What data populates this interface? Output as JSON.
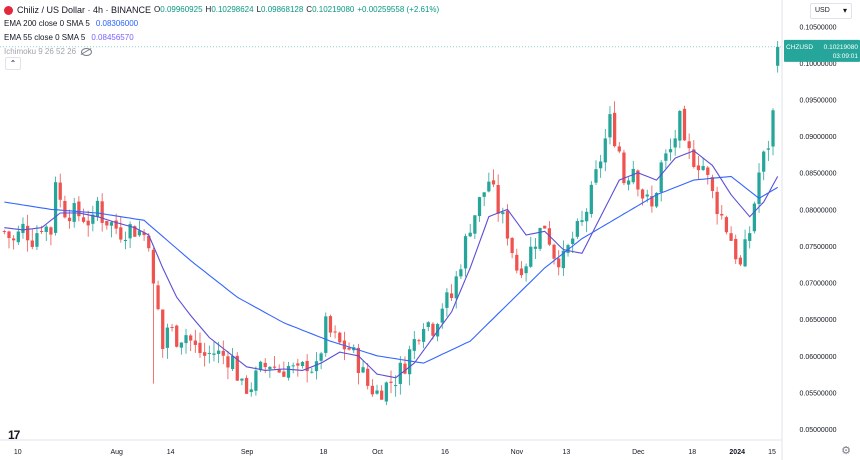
{
  "header": {
    "symbol_title": "Chiliz / US Dollar · 4h · BINANCE",
    "ohlc": [
      {
        "key": "O",
        "value": "0.09960925"
      },
      {
        "key": "H",
        "value": "0.10298624"
      },
      {
        "key": "L",
        "value": "0.09868128"
      },
      {
        "key": "C",
        "value": "0.10219080"
      },
      {
        "key": "",
        "value": "+0.00259558 (+2.61%)"
      }
    ],
    "indicators": [
      {
        "name": "EMA 200 close 0 SMA 5",
        "value": "0.08306000",
        "color": "#2962ff"
      },
      {
        "name": "EMA 55 close 0 SMA 5",
        "value": "0.08456570",
        "color": "#7b61ff"
      }
    ],
    "ichimoku_label": "Ichimoku 9 26 52 26",
    "currency": "USD"
  },
  "colors": {
    "up": "#26a69a",
    "down": "#ef5350",
    "ema200": "#3366ff",
    "ema55": "#5a4fd6",
    "price_line": "#26a69a",
    "logo": "#e2283a"
  },
  "price_label": {
    "symbol": "CHZUSD",
    "price": "0.10219080",
    "countdown": "03:09:01"
  },
  "chart_data": {
    "type": "candlestick",
    "symbol": "CHZUSD",
    "timeframe": "4h",
    "y_ticks": [
      "0.10500000",
      "0.10000000",
      "0.09500000",
      "0.09000000",
      "0.08500000",
      "0.08000000",
      "0.07500000",
      "0.07000000",
      "0.06500000",
      "0.06000000",
      "0.05500000",
      "0.05000000"
    ],
    "ylim": [
      0.0485,
      0.1075
    ],
    "x_ticks": [
      "10",
      "Aug",
      "14",
      "Sep",
      "18",
      "Oct",
      "16",
      "Nov",
      "13",
      "Dec",
      "18",
      "2024",
      "15"
    ],
    "close_path": [
      [
        0,
        0.077
      ],
      [
        2,
        0.0755
      ],
      [
        4,
        0.0775
      ],
      [
        6,
        0.076
      ],
      [
        8,
        0.078
      ],
      [
        10,
        0.077
      ],
      [
        11,
        0.0845
      ],
      [
        12,
        0.081
      ],
      [
        13,
        0.08
      ],
      [
        15,
        0.0795
      ],
      [
        17,
        0.079
      ],
      [
        19,
        0.078
      ],
      [
        20,
        0.081
      ],
      [
        21,
        0.079
      ],
      [
        23,
        0.078
      ],
      [
        25,
        0.077
      ],
      [
        27,
        0.0775
      ],
      [
        29,
        0.077
      ],
      [
        30,
        0.0765
      ],
      [
        31,
        0.076
      ],
      [
        32,
        0.069
      ],
      [
        33,
        0.066
      ],
      [
        34,
        0.061
      ],
      [
        35,
        0.064
      ],
      [
        37,
        0.0625
      ],
      [
        39,
        0.063
      ],
      [
        41,
        0.061
      ],
      [
        43,
        0.06
      ],
      [
        45,
        0.0605
      ],
      [
        47,
        0.06
      ],
      [
        49,
        0.0595
      ],
      [
        51,
        0.0555
      ],
      [
        53,
        0.056
      ],
      [
        55,
        0.058
      ],
      [
        57,
        0.059
      ],
      [
        59,
        0.058
      ],
      [
        61,
        0.0585
      ],
      [
        63,
        0.0575
      ],
      [
        65,
        0.059
      ],
      [
        67,
        0.058
      ],
      [
        69,
        0.064
      ],
      [
        70,
        0.063
      ],
      [
        72,
        0.0615
      ],
      [
        74,
        0.061
      ],
      [
        76,
        0.059
      ],
      [
        78,
        0.056
      ],
      [
        80,
        0.055
      ],
      [
        82,
        0.056
      ],
      [
        84,
        0.057
      ],
      [
        86,
        0.059
      ],
      [
        88,
        0.062
      ],
      [
        90,
        0.065
      ],
      [
        92,
        0.064
      ],
      [
        94,
        0.067
      ],
      [
        96,
        0.068
      ],
      [
        98,
        0.073
      ],
      [
        100,
        0.078
      ],
      [
        102,
        0.081
      ],
      [
        104,
        0.084
      ],
      [
        106,
        0.08
      ],
      [
        108,
        0.077
      ],
      [
        110,
        0.072
      ],
      [
        112,
        0.073
      ],
      [
        114,
        0.076
      ],
      [
        116,
        0.078
      ],
      [
        118,
        0.074
      ],
      [
        120,
        0.073
      ],
      [
        122,
        0.076
      ],
      [
        124,
        0.078
      ],
      [
        126,
        0.082
      ],
      [
        128,
        0.087
      ],
      [
        130,
        0.092
      ],
      [
        132,
        0.088
      ],
      [
        133,
        0.084
      ],
      [
        135,
        0.086
      ],
      [
        137,
        0.082
      ],
      [
        139,
        0.08
      ],
      [
        141,
        0.086
      ],
      [
        143,
        0.088
      ],
      [
        145,
        0.092
      ],
      [
        146,
        0.088
      ],
      [
        148,
        0.087
      ],
      [
        150,
        0.086
      ],
      [
        152,
        0.082
      ],
      [
        154,
        0.079
      ],
      [
        156,
        0.076
      ],
      [
        158,
        0.072
      ],
      [
        160,
        0.077
      ],
      [
        162,
        0.085
      ],
      [
        164,
        0.089
      ],
      [
        165,
        0.093
      ],
      [
        166,
        0.1022
      ]
    ],
    "ema55_path": [
      [
        0,
        0.0775
      ],
      [
        4,
        0.0772
      ],
      [
        8,
        0.0775
      ],
      [
        12,
        0.0795
      ],
      [
        16,
        0.0795
      ],
      [
        20,
        0.079
      ],
      [
        24,
        0.0782
      ],
      [
        28,
        0.0775
      ],
      [
        31,
        0.0765
      ],
      [
        34,
        0.072
      ],
      [
        37,
        0.068
      ],
      [
        40,
        0.0655
      ],
      [
        44,
        0.0625
      ],
      [
        48,
        0.0605
      ],
      [
        52,
        0.0585
      ],
      [
        56,
        0.058
      ],
      [
        60,
        0.0582
      ],
      [
        64,
        0.058
      ],
      [
        68,
        0.059
      ],
      [
        72,
        0.0605
      ],
      [
        76,
        0.06
      ],
      [
        80,
        0.0575
      ],
      [
        84,
        0.057
      ],
      [
        88,
        0.059
      ],
      [
        92,
        0.0625
      ],
      [
        96,
        0.066
      ],
      [
        100,
        0.072
      ],
      [
        104,
        0.079
      ],
      [
        108,
        0.08
      ],
      [
        112,
        0.0765
      ],
      [
        116,
        0.077
      ],
      [
        120,
        0.0745
      ],
      [
        124,
        0.074
      ],
      [
        128,
        0.079
      ],
      [
        132,
        0.084
      ],
      [
        136,
        0.085
      ],
      [
        140,
        0.084
      ],
      [
        144,
        0.087
      ],
      [
        148,
        0.088
      ],
      [
        152,
        0.086
      ],
      [
        156,
        0.082
      ],
      [
        160,
        0.079
      ],
      [
        163,
        0.081
      ],
      [
        166,
        0.0845
      ]
    ],
    "ema200_path": [
      [
        0,
        0.081
      ],
      [
        10,
        0.08
      ],
      [
        20,
        0.0795
      ],
      [
        30,
        0.0785
      ],
      [
        40,
        0.073
      ],
      [
        50,
        0.068
      ],
      [
        60,
        0.0645
      ],
      [
        70,
        0.062
      ],
      [
        80,
        0.06
      ],
      [
        90,
        0.059
      ],
      [
        100,
        0.062
      ],
      [
        108,
        0.067
      ],
      [
        116,
        0.072
      ],
      [
        124,
        0.076
      ],
      [
        132,
        0.079
      ],
      [
        140,
        0.082
      ],
      [
        148,
        0.084
      ],
      [
        156,
        0.0845
      ],
      [
        162,
        0.0815
      ],
      [
        166,
        0.083
      ]
    ],
    "bar_count": 167
  }
}
